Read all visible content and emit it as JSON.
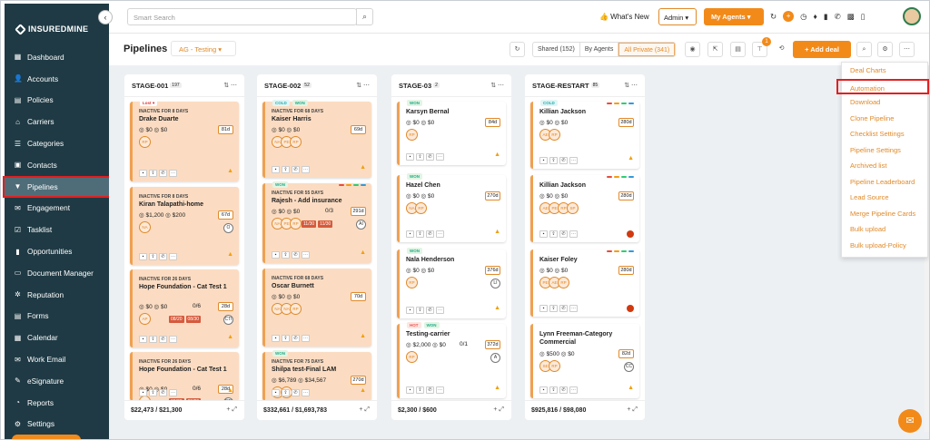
{
  "brand": {
    "logo_text": "INSUREDMINE"
  },
  "sidebar": {
    "collapse_icon": "chevron-left-icon",
    "items": [
      {
        "label": "Dashboard",
        "icon": "▦",
        "name": "dashboard"
      },
      {
        "label": "Accounts",
        "icon": "👤",
        "name": "accounts"
      },
      {
        "label": "Policies",
        "icon": "▤",
        "name": "policies"
      },
      {
        "label": "Carriers",
        "icon": "⌂",
        "name": "carriers"
      },
      {
        "label": "Categories",
        "icon": "☰",
        "name": "categories"
      },
      {
        "label": "Contacts",
        "icon": "▣",
        "name": "contacts"
      },
      {
        "label": "Pipelines",
        "icon": "▼",
        "name": "pipelines",
        "active": true
      },
      {
        "label": "Engagement",
        "icon": "✉",
        "name": "engagement"
      },
      {
        "label": "Tasklist",
        "icon": "☑",
        "name": "tasklist"
      },
      {
        "label": "Opportunities",
        "icon": "▮",
        "name": "opportunities"
      },
      {
        "label": "Document Manager",
        "icon": "▭",
        "name": "document-manager"
      },
      {
        "label": "Reputation",
        "icon": "✲",
        "name": "reputation"
      },
      {
        "label": "Forms",
        "icon": "▤",
        "name": "forms"
      },
      {
        "label": "Calendar",
        "icon": "▦",
        "name": "calendar"
      },
      {
        "label": "Work Email",
        "icon": "✉",
        "name": "work-email"
      },
      {
        "label": "eSignature",
        "icon": "✎",
        "name": "esignature"
      },
      {
        "label": "Reports",
        "icon": "◔",
        "name": "reports"
      },
      {
        "label": "Settings",
        "icon": "⚙",
        "name": "settings"
      }
    ]
  },
  "topbar": {
    "search_placeholder": "Smart Search",
    "whats_new": "👍 What's New",
    "admin": "Admin ▾",
    "my_agents": "My Agents ▾",
    "notif_count": "+"
  },
  "subbar": {
    "title": "Pipelines",
    "pipeline_select": "AG - Testing ▾",
    "shared": "Shared (152)",
    "by_agents": "By Agents",
    "all_private": "All Private (341)",
    "filter_badge": "1",
    "add_deal": "+ Add deal"
  },
  "menu": {
    "items": [
      "Deal Charts",
      "Automation",
      "Download",
      "Clone Pipeline",
      "Checklist Settings",
      "Pipeline Settings",
      "Archived list",
      "Pipeline Leaderboard",
      "Lead Source",
      "Merge Pipeline Cards",
      "Bulk upload",
      "Bulk upload-Policy"
    ],
    "highlighted": "Automation"
  },
  "columns": [
    {
      "title": "STAGE-001",
      "count": "197",
      "total": "$22,473 / $21,300"
    },
    {
      "title": "STAGE-002",
      "count": "52",
      "total": "$332,661 / $1,693,783"
    },
    {
      "title": "STAGE-03",
      "count": "2",
      "total": "$2,300 / $600"
    },
    {
      "title": "STAGE-RESTART",
      "count": "85",
      "total": "$925,816 / $98,080"
    }
  ],
  "cards": {
    "c1a": {
      "tag": "Lost ♥",
      "inactive": "INACTIVE FOR 8 DAYS",
      "title": "Drake Duarte",
      "amounts": "◎ $0 ◎ $0",
      "days": "81d",
      "p": [
        "RP"
      ]
    },
    "c1b": {
      "inactive": "INACTIVE FOR 8 DAYS",
      "title": "Kiran Talapathi-home",
      "amounts": "◎ $1,200 ◎ $200",
      "days": "67d",
      "p": [
        "NA"
      ],
      "circ": "O",
      "extra": "1"
    },
    "c1c": {
      "inactive": "INACTIVE FOR 26 DAYS",
      "title": "Hope Foundation - Cat Test 1",
      "amounts": "◎ $0 ◎ $0",
      "ratio": "0/6",
      "days": "28d",
      "p": [
        "AP"
      ],
      "dates": [
        "08/20",
        "08/30"
      ],
      "circ": "CTI"
    },
    "c1d": {
      "inactive": "INACTIVE FOR 26 DAYS",
      "title": "Hope Foundation - Cat Test 1",
      "amounts": "◎ $0 ◎ $0",
      "ratio": "0/6",
      "days": "28d",
      "p": [
        "AP"
      ],
      "dates": [
        "08/20",
        "08/30"
      ],
      "circ": "CTI"
    },
    "c2a": {
      "tag": "COLD",
      "tag2": "WON",
      "inactive": "INACTIVE FOR 68 DAYS",
      "title": "Kaiser Harris",
      "amounts": "◎ $0 ◎ $0",
      "days": "69d",
      "p": [
        "NA",
        "PE",
        "RP"
      ]
    },
    "c2b": {
      "tag": "WON",
      "inactive": "INACTIVE FOR 55 DAYS",
      "title": "Rajesh - Add insurance",
      "amounts": "◎ $0 ◎ $0",
      "ratio": "0/3",
      "days": "291d",
      "p": [
        "NA",
        "PE",
        "RP"
      ],
      "dates": [
        "11/30",
        "11/30"
      ],
      "circ": "AI"
    },
    "c2c": {
      "inactive": "INACTIVE FOR 68 DAYS",
      "title": "Oscar Burnett",
      "amounts": "◎ $0 ◎ $0",
      "days": "70d",
      "p": [
        "NA",
        "NA",
        "RP"
      ]
    },
    "c2d": {
      "tag": "WON",
      "inactive": "INACTIVE FOR 75 DAYS",
      "title": "Shilpa test-Final LAM",
      "amounts": "◎ $6,789 ◎ $34,567",
      "days": "270d",
      "p": [
        "SP",
        "IA"
      ]
    },
    "c3a": {
      "tag": "WON",
      "title": "Karsyn Bernal",
      "amounts": "◎ $0 ◎ $0",
      "days": "84d",
      "p": [
        "RP"
      ]
    },
    "c3b": {
      "tag": "WON",
      "title": "Hazel Chen",
      "amounts": "◎ $0 ◎ $0",
      "days": "270d",
      "p": [
        "NA",
        "RP"
      ]
    },
    "c3c": {
      "tag": "WON",
      "title": "Nala Henderson",
      "amounts": "◎ $0 ◎ $0",
      "days": "376d",
      "p": [
        "RP"
      ],
      "circ": "LI"
    },
    "c3d": {
      "tag": "HOT",
      "tag2": "WON",
      "title": "Testing-carrier",
      "amounts": "◎ $2,000 ◎ $0",
      "ratio": "0/1",
      "days": "372d",
      "p": [
        "RP"
      ],
      "circ": "A"
    },
    "c4a": {
      "tag": "COLD",
      "title": "Killian Jackson",
      "amounts": "◎ $0 ◎ $0",
      "days": "280d",
      "p": [
        "AE",
        "RP"
      ]
    },
    "c4b": {
      "title": "Killian Jackson",
      "amounts": "◎ $0 ◎ $0",
      "days": "280d",
      "p": [
        "AE",
        "PE",
        "RP",
        "SP"
      ]
    },
    "c4c": {
      "title": "Kaiser Foley",
      "amounts": "◎ $0 ◎ $0",
      "days": "280d",
      "p": [
        "PE",
        "AE",
        "RP"
      ]
    },
    "c4d": {
      "title": "Lynn Freeman-Category Commercial",
      "amounts": "◎ $500 ◎ $0",
      "days": "82d",
      "p": [
        "SE",
        "RP"
      ],
      "circ": "CC"
    }
  },
  "colors": {
    "accent": "#f28a1a",
    "sidebar": "#1f3a44",
    "board": "#edf0f3",
    "highlight": "#e02020"
  }
}
